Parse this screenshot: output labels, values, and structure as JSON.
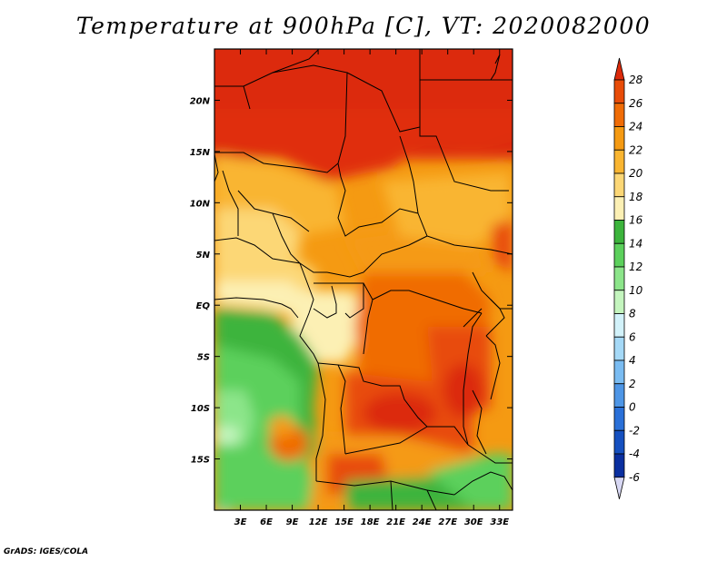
{
  "title": "Temperature at 900hPa [C], VT: 2020082000",
  "credit": "GrADS: IGES/COLA",
  "map": {
    "lon_range": [
      0,
      34.5
    ],
    "lat_range": [
      -20,
      25
    ],
    "lon_ticks": [
      {
        "value": 3,
        "label": "3E"
      },
      {
        "value": 6,
        "label": "6E"
      },
      {
        "value": 9,
        "label": "9E"
      },
      {
        "value": 12,
        "label": "12E"
      },
      {
        "value": 15,
        "label": "15E"
      },
      {
        "value": 18,
        "label": "18E"
      },
      {
        "value": 21,
        "label": "21E"
      },
      {
        "value": 24,
        "label": "24E"
      },
      {
        "value": 27,
        "label": "27E"
      },
      {
        "value": 30,
        "label": "30E"
      },
      {
        "value": 33,
        "label": "33E"
      }
    ],
    "lat_ticks": [
      {
        "value": 20,
        "label": "20N"
      },
      {
        "value": 15,
        "label": "15N"
      },
      {
        "value": 10,
        "label": "10N"
      },
      {
        "value": 5,
        "label": "5N"
      },
      {
        "value": 0,
        "label": "EQ"
      },
      {
        "value": -5,
        "label": "5S"
      },
      {
        "value": -10,
        "label": "10S"
      },
      {
        "value": -15,
        "label": "15S"
      }
    ]
  },
  "colorbar": {
    "levels": [
      "28",
      "26",
      "24",
      "22",
      "20",
      "18",
      "16",
      "14",
      "12",
      "10",
      "8",
      "6",
      "4",
      "2",
      "0",
      "-2",
      "-4",
      "-6"
    ],
    "colors": [
      "#dc2a0a",
      "#e84c08",
      "#f06c06",
      "#f59a12",
      "#f9b531",
      "#fcd776",
      "#fcf0b4",
      "#3cb43c",
      "#5cd05c",
      "#8ce58a",
      "#c4f5be",
      "#d2f2fa",
      "#a5d9f7",
      "#7abcf2",
      "#4e96e6",
      "#2a70d8",
      "#1550c0",
      "#0a2fa0",
      "#06107a",
      "#d8d8f4"
    ]
  }
}
